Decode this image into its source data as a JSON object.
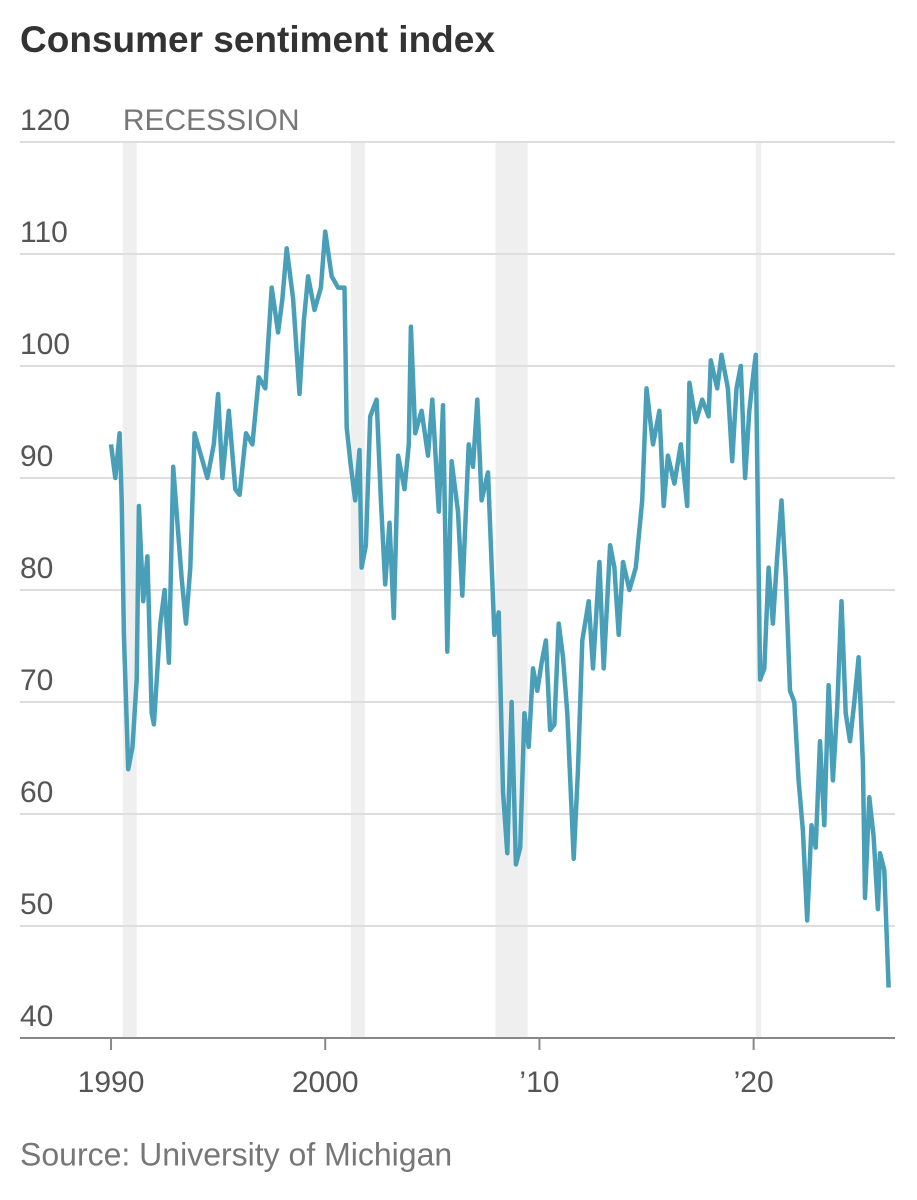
{
  "chart_data": {
    "type": "line",
    "title": "Consumer sentiment index",
    "source": "Source: University of Michigan",
    "recession_label": "RECESSION",
    "recessions": [
      [
        1990.55,
        1991.2
      ],
      [
        2001.2,
        2001.85
      ],
      [
        2007.95,
        2009.45
      ],
      [
        2020.1,
        2020.35
      ]
    ],
    "recession_color": "#efefef",
    "xlim": [
      1985.75,
      2026.6
    ],
    "ylim": [
      40,
      120
    ],
    "xticks": [
      1990,
      2000,
      {
        "value": 2010,
        "label": "’10"
      },
      {
        "value": 2020,
        "label": "’20"
      }
    ],
    "yticks": [
      40,
      50,
      60,
      70,
      80,
      90,
      100,
      110,
      120
    ],
    "grid": true,
    "series": [
      {
        "name": "Consumer sentiment index",
        "color": "#4a9fb8",
        "x": [
          1990.0,
          1990.2,
          1990.4,
          1990.5,
          1990.6,
          1990.8,
          1991.0,
          1991.2,
          1991.3,
          1991.5,
          1991.7,
          1991.9,
          1992.0,
          1992.3,
          1992.5,
          1992.7,
          1992.9,
          1993.1,
          1993.3,
          1993.5,
          1993.7,
          1993.9,
          1994.2,
          1994.5,
          1994.8,
          1995.0,
          1995.2,
          1995.5,
          1995.8,
          1996.0,
          1996.3,
          1996.6,
          1996.9,
          1997.2,
          1997.5,
          1997.8,
          1998.0,
          1998.2,
          1998.5,
          1998.8,
          1999.0,
          1999.2,
          1999.5,
          1999.8,
          2000.0,
          2000.3,
          2000.6,
          2000.9,
          2001.0,
          2001.2,
          2001.4,
          2001.6,
          2001.7,
          2001.9,
          2002.1,
          2002.4,
          2002.6,
          2002.8,
          2003.0,
          2003.2,
          2003.4,
          2003.7,
          2003.9,
          2004.0,
          2004.2,
          2004.5,
          2004.8,
          2005.0,
          2005.3,
          2005.5,
          2005.7,
          2005.9,
          2006.2,
          2006.4,
          2006.7,
          2006.9,
          2007.1,
          2007.3,
          2007.6,
          2007.9,
          2008.1,
          2008.3,
          2008.5,
          2008.7,
          2008.9,
          2009.1,
          2009.3,
          2009.5,
          2009.7,
          2009.9,
          2010.1,
          2010.3,
          2010.5,
          2010.7,
          2010.9,
          2011.1,
          2011.3,
          2011.6,
          2011.8,
          2012.0,
          2012.3,
          2012.5,
          2012.8,
          2013.0,
          2013.3,
          2013.5,
          2013.7,
          2013.9,
          2014.2,
          2014.5,
          2014.8,
          2015.0,
          2015.3,
          2015.6,
          2015.8,
          2016.0,
          2016.3,
          2016.6,
          2016.9,
          2017.0,
          2017.3,
          2017.6,
          2017.9,
          2018.0,
          2018.3,
          2018.5,
          2018.8,
          2019.0,
          2019.2,
          2019.4,
          2019.6,
          2019.8,
          2020.0,
          2020.1,
          2020.3,
          2020.5,
          2020.7,
          2020.9,
          2021.1,
          2021.3,
          2021.5,
          2021.7,
          2021.9,
          2022.1,
          2022.3,
          2022.5,
          2022.7,
          2022.9,
          2023.1,
          2023.3,
          2023.5,
          2023.7,
          2023.9,
          2024.1,
          2024.3,
          2024.5,
          2024.7,
          2024.9,
          2025.1,
          2025.2,
          2025.4,
          2025.6,
          2025.8,
          2025.9,
          2026.1,
          2026.3
        ],
        "values": [
          93,
          90,
          94,
          88,
          76,
          64,
          66,
          72,
          87.5,
          79,
          83,
          69,
          68,
          77,
          80,
          73.5,
          91,
          86,
          81,
          77,
          82,
          94,
          92,
          90,
          93,
          97.5,
          90,
          96,
          89,
          88.5,
          94,
          93,
          99,
          98,
          107,
          103,
          106,
          110.5,
          106,
          97.5,
          104,
          108,
          105,
          107,
          112,
          108,
          107,
          107,
          94.5,
          91,
          88,
          92.5,
          82,
          84,
          95.5,
          97,
          88,
          80.5,
          86,
          77.5,
          92,
          89,
          93,
          103.5,
          94,
          96,
          92,
          97,
          87,
          96.5,
          74.5,
          91.5,
          87,
          79.5,
          93,
          91,
          97,
          88,
          90.5,
          76,
          78,
          62,
          56.5,
          70,
          55.5,
          57,
          69,
          66,
          73,
          71,
          73.5,
          75.5,
          67.5,
          68,
          77,
          74,
          69,
          56,
          64,
          75.5,
          79,
          73,
          82.5,
          73,
          84,
          82,
          76,
          82.5,
          80,
          82,
          88,
          98,
          93,
          96,
          87.5,
          92,
          89.5,
          93,
          87.5,
          98.5,
          95,
          97,
          95.5,
          100.5,
          98,
          101,
          98,
          91.5,
          98,
          100,
          90,
          96,
          99.5,
          101,
          72,
          73,
          82,
          77,
          83,
          88,
          81,
          71,
          70,
          63,
          58.5,
          50.5,
          59,
          57,
          66.5,
          59,
          71.5,
          63,
          69.5,
          79,
          69,
          66.5,
          70,
          74,
          64.5,
          52.5,
          61.5,
          58,
          51.5,
          56.5,
          55,
          44.5
        ]
      }
    ]
  }
}
